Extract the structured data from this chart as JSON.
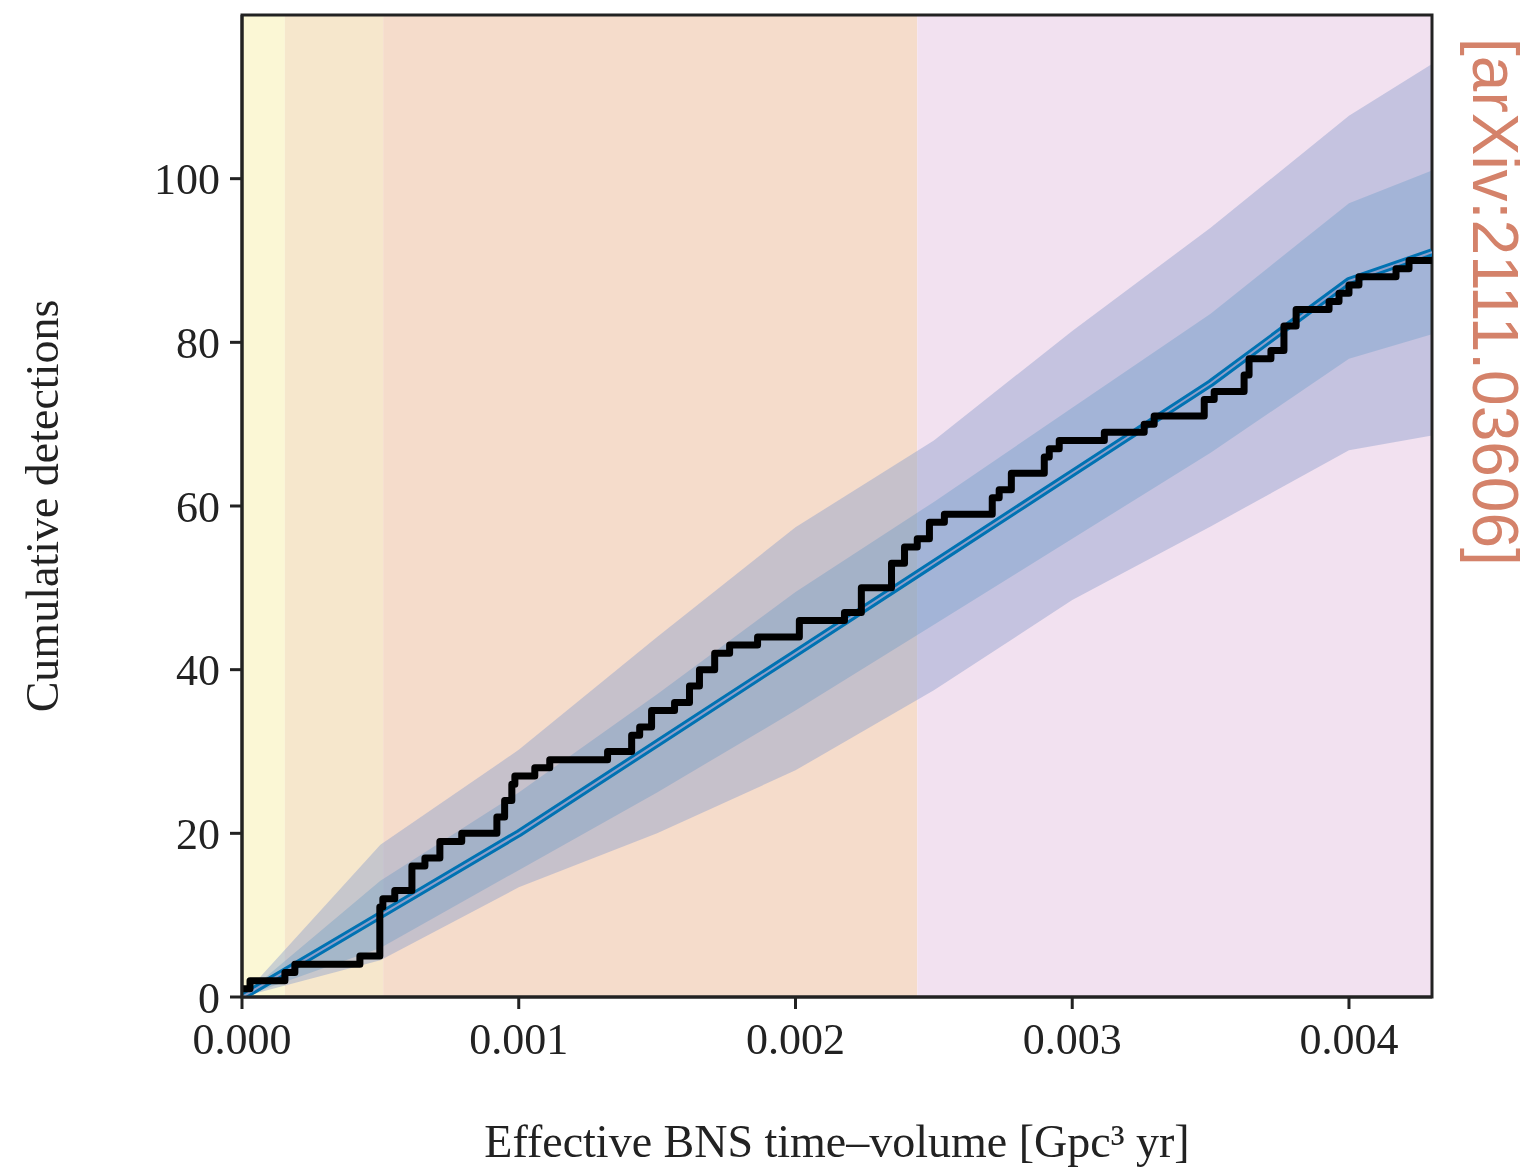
{
  "chart_data": {
    "type": "line",
    "xlabel": "Effective BNS time–volume [Gpc³ yr]",
    "ylabel": "Cumulative detections",
    "annotations": [
      "[arXiv:2111.03606]"
    ],
    "xlim": [
      0,
      0.0043
    ],
    "ylim": [
      0,
      120
    ],
    "xticks": [
      {
        "value": 0,
        "label": "0.000"
      },
      {
        "value": 0.001,
        "label": "0.001"
      },
      {
        "value": 0.002,
        "label": "0.002"
      },
      {
        "value": 0.003,
        "label": "0.003"
      },
      {
        "value": 0.004,
        "label": "0.004"
      }
    ],
    "yticks": [
      0,
      20,
      40,
      60,
      80,
      100
    ],
    "grid": false,
    "legend": false,
    "bands": [
      {
        "axis": "x",
        "from": 0,
        "to": 0.000155,
        "color": "#fbf7d5"
      },
      {
        "axis": "x",
        "from": 0.000155,
        "to": 0.00051,
        "color": "#f6e7cc"
      },
      {
        "axis": "x",
        "from": 0.00051,
        "to": 0.00244,
        "color": "#f5dccb"
      },
      {
        "axis": "x",
        "from": 0.00244,
        "to": 0.0043,
        "color": "#f2e1f0"
      }
    ],
    "series": [
      {
        "color": "#0072b2",
        "x": [
          0,
          0.0005,
          0.001,
          0.0015,
          0.002,
          0.0025,
          0.003,
          0.0035,
          0.004,
          0.0043
        ],
        "values": [
          0,
          10,
          20,
          31,
          42,
          53,
          64,
          75,
          87.5,
          91
        ],
        "lower": [
          0,
          6,
          15.5,
          25,
          35,
          45.5,
          56,
          66.5,
          78,
          81
        ],
        "upper": [
          0,
          14.2,
          25,
          37,
          49.5,
          60.5,
          72,
          83.5,
          97,
          101
        ]
      },
      {
        "type": "line",
        "color": "#8da0cb",
        "x": [
          0,
          0.0005,
          0.001,
          0.0015,
          0.002,
          0.0025,
          0.003,
          0.0035,
          0.004,
          0.0043
        ],
        "values": [
          0,
          10,
          20,
          31,
          42,
          53,
          64,
          75,
          87.5,
          91
        ],
        "lower": [
          0,
          4.5,
          13.4,
          20,
          27.7,
          37.5,
          48.5,
          57.5,
          66.8,
          68.6
        ],
        "upper": [
          0,
          18.6,
          30.2,
          44,
          57.4,
          68,
          81.4,
          94,
          107.7,
          114
        ]
      },
      {
        "type": "step",
        "color": "#000000",
        "x": [
          0,
          2.9e-05,
          0.000155,
          0.000191,
          0.000426,
          0.000498,
          0.000509,
          0.000552,
          0.000614,
          0.000661,
          0.000715,
          0.000794,
          0.000921,
          0.000949,
          0.000975,
          0.000986,
          0.001058,
          0.001112,
          0.001321,
          0.001408,
          0.001437,
          0.00148,
          0.001563,
          0.001617,
          0.001653,
          0.001708,
          0.001762,
          0.001863,
          0.002014,
          0.002177,
          0.002238,
          0.002347,
          0.002394,
          0.00244,
          0.002484,
          0.002538,
          0.002711,
          0.002736,
          0.00278,
          0.002899,
          0.002917,
          0.002953,
          0.003116,
          0.00326,
          0.003296,
          0.003477,
          0.003513,
          0.003621,
          0.003639,
          0.003718,
          0.003765,
          0.003809,
          0.003928,
          0.003964,
          0.004,
          0.004036,
          0.00417,
          0.004217,
          0.0043
        ],
        "values": [
          1,
          2,
          3,
          4,
          5,
          11,
          12,
          13,
          16,
          17,
          19,
          20,
          22,
          24,
          26,
          27,
          28,
          29,
          30,
          32,
          33,
          35,
          36,
          38,
          40,
          42,
          43,
          44,
          46,
          47,
          50,
          53,
          55,
          56,
          58,
          59,
          61,
          62,
          64,
          66,
          67,
          68,
          69,
          70,
          71,
          73,
          74,
          76,
          78,
          79,
          82,
          84,
          85,
          86,
          87,
          88,
          89,
          90,
          90
        ]
      }
    ]
  }
}
